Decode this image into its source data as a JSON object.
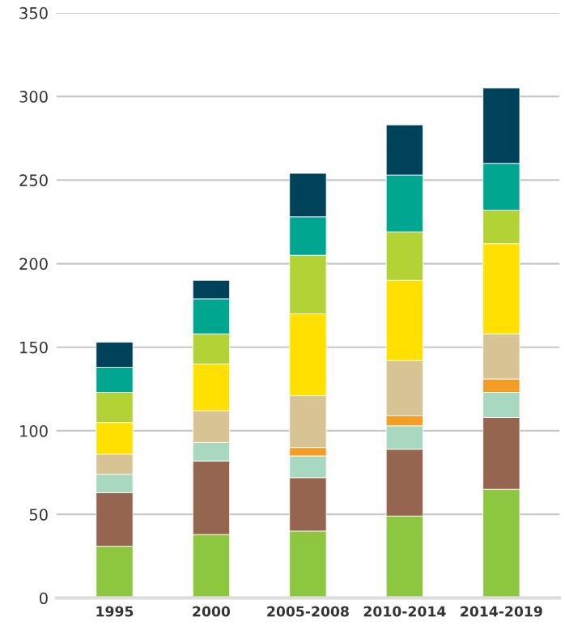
{
  "chart_data": {
    "type": "bar",
    "stacked": true,
    "categories": [
      "1995",
      "2000",
      "2005-2008",
      "2010-2014",
      "2014-2019"
    ],
    "series": [
      {
        "color": "#8dc63f",
        "values": [
          31,
          38,
          40,
          49,
          65
        ]
      },
      {
        "color": "#956550",
        "values": [
          32,
          44,
          32,
          40,
          43
        ]
      },
      {
        "color": "#a8d8c0",
        "values": [
          11,
          11,
          13,
          14,
          15
        ]
      },
      {
        "color": "#f39c26",
        "values": [
          null,
          null,
          5,
          6,
          8
        ]
      },
      {
        "color": "#d7c394",
        "values": [
          12,
          19,
          31,
          33,
          27
        ]
      },
      {
        "color": "#ffe000",
        "values": [
          19,
          28,
          49,
          48,
          54
        ]
      },
      {
        "color": "#b2d235",
        "values": [
          18,
          18,
          35,
          29,
          20
        ]
      },
      {
        "color": "#00a690",
        "values": [
          15,
          21,
          23,
          34,
          28
        ]
      },
      {
        "color": "#00425a",
        "values": [
          15,
          11,
          26,
          30,
          45
        ]
      }
    ],
    "ylim": [
      0,
      350
    ],
    "yticks": [
      0,
      50,
      100,
      150,
      200,
      250,
      300,
      350
    ],
    "grid": "y",
    "legend": false
  }
}
